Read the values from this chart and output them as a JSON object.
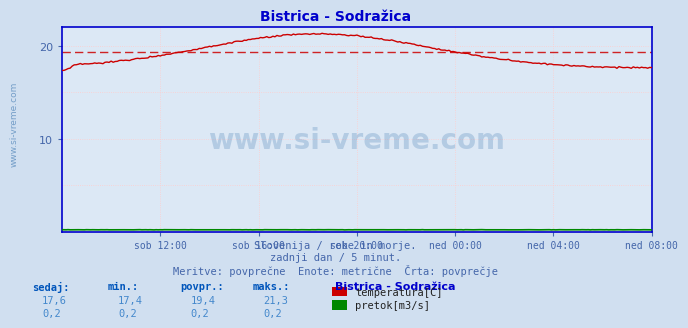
{
  "title": "Bistrica - Sodražica",
  "bg_color": "#d0dff0",
  "plot_bg_color": "#dce8f5",
  "ylabel_left": "",
  "xlabel": "",
  "xlim": [
    0,
    288
  ],
  "ylim": [
    0,
    22
  ],
  "ytick_vals": [
    10,
    20
  ],
  "xtick_labels": [
    "sob 12:00",
    "sob 16:00",
    "sob 20:00",
    "ned 00:00",
    "ned 04:00",
    "ned 08:00"
  ],
  "xtick_positions": [
    48,
    96,
    144,
    192,
    240,
    288
  ],
  "temp_avg": 19.4,
  "temp_color": "#cc0000",
  "flow_color": "#008800",
  "watermark": "www.si-vreme.com",
  "subtitle1": "Slovenija / reke in morje.",
  "subtitle2": "zadnji dan / 5 minut.",
  "subtitle3": "Meritve: povprečne  Enote: metrične  Črta: povprečje",
  "legend_title": "Bistrica - Sodražica",
  "legend_items": [
    {
      "label": "temperatura[C]",
      "color": "#cc0000"
    },
    {
      "label": "pretok[m3/s]",
      "color": "#008800"
    }
  ],
  "stats_labels": [
    "sedaj:",
    "min.:",
    "povpr.:",
    "maks.:"
  ],
  "stats_temp": [
    "17,6",
    "17,4",
    "19,4",
    "21,3"
  ],
  "stats_flow": [
    "0,2",
    "0,2",
    "0,2",
    "0,2"
  ],
  "sidebar_text": "www.si-vreme.com",
  "title_color": "#0000cc",
  "subtitle_color": "#4466aa",
  "stats_label_color": "#0055bb",
  "stats_value_color": "#4488cc",
  "spine_color": "#0000cc",
  "grid_pink": "#ffcccc",
  "grid_blue": "#bbbbdd"
}
